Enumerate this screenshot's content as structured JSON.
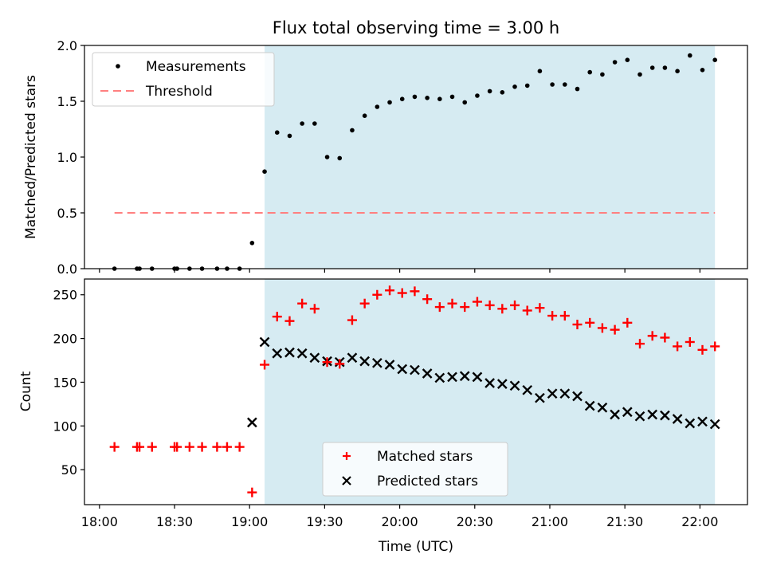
{
  "chart_data": {
    "title": "Flux total observing time = 3.00 h",
    "xlabel": "Time (UTC)",
    "x_ticks": [
      "18:00",
      "18:30",
      "19:00",
      "19:30",
      "20:00",
      "20:30",
      "21:00",
      "21:30",
      "22:00"
    ],
    "x_range_minutes": [
      -6,
      259
    ],
    "shaded_span": {
      "start": "19:06",
      "end": "22:06",
      "color": "#add8e6"
    },
    "panels": [
      {
        "type": "scatter",
        "ylabel": "Matched/Predicted stars",
        "ylim": [
          0,
          2.0
        ],
        "yticks": [
          0.0,
          0.5,
          1.0,
          1.5,
          2.0
        ],
        "legend_placement": "upper-left",
        "series": [
          {
            "name": "Measurements",
            "marker": "dot",
            "color": "#000000",
            "x": [
              "18:06",
              "18:15",
              "18:16",
              "18:21",
              "18:30",
              "18:31",
              "18:36",
              "18:41",
              "18:47",
              "18:51",
              "18:56",
              "19:01",
              "19:06",
              "19:11",
              "19:16",
              "19:21",
              "19:26",
              "19:31",
              "19:36",
              "19:41",
              "19:46",
              "19:51",
              "19:56",
              "20:01",
              "20:06",
              "20:11",
              "20:16",
              "20:21",
              "20:26",
              "20:31",
              "20:36",
              "20:41",
              "20:46",
              "20:51",
              "20:56",
              "21:01",
              "21:06",
              "21:11",
              "21:16",
              "21:21",
              "21:26",
              "21:31",
              "21:36",
              "21:41",
              "21:46",
              "21:51",
              "21:56",
              "22:01",
              "22:06"
            ],
            "y": [
              0.0,
              0.0,
              0.0,
              0.0,
              0.0,
              0.0,
              0.0,
              0.0,
              0.0,
              0.0,
              0.0,
              0.23,
              0.87,
              1.22,
              1.19,
              1.3,
              1.3,
              1.0,
              0.99,
              1.24,
              1.37,
              1.45,
              1.49,
              1.52,
              1.54,
              1.53,
              1.52,
              1.54,
              1.49,
              1.55,
              1.59,
              1.58,
              1.63,
              1.64,
              1.77,
              1.65,
              1.65,
              1.61,
              1.76,
              1.74,
              1.85,
              1.87,
              1.74,
              1.8,
              1.8,
              1.77,
              1.91,
              1.78,
              1.87
            ]
          },
          {
            "name": "Threshold",
            "style": "dashed-line",
            "color": "#ff8080",
            "x": [
              "18:06",
              "22:06"
            ],
            "y": [
              0.5,
              0.5
            ]
          }
        ]
      },
      {
        "type": "scatter",
        "ylabel": "Count",
        "ylim": [
          10,
          268
        ],
        "yticks": [
          50,
          100,
          150,
          200,
          250
        ],
        "legend_placement": "lower-center",
        "series": [
          {
            "name": "Matched stars",
            "marker": "plus",
            "color": "#ff0000",
            "x": [
              "18:06",
              "18:15",
              "18:16",
              "18:21",
              "18:30",
              "18:31",
              "18:36",
              "18:41",
              "18:47",
              "18:51",
              "18:56",
              "19:01",
              "19:06",
              "19:11",
              "19:16",
              "19:21",
              "19:26",
              "19:31",
              "19:36",
              "19:41",
              "19:46",
              "19:51",
              "19:56",
              "20:01",
              "20:06",
              "20:11",
              "20:16",
              "20:21",
              "20:26",
              "20:31",
              "20:36",
              "20:41",
              "20:46",
              "20:51",
              "20:56",
              "21:01",
              "21:06",
              "21:11",
              "21:16",
              "21:21",
              "21:26",
              "21:31",
              "21:36",
              "21:41",
              "21:46",
              "21:51",
              "21:56",
              "22:01",
              "22:06"
            ],
            "y": [
              76,
              76,
              76,
              76,
              76,
              76,
              76,
              76,
              76,
              76,
              76,
              24,
              170,
              225,
              220,
              240,
              234,
              173,
              171,
              221,
              240,
              250,
              255,
              252,
              254,
              245,
              236,
              240,
              236,
              242,
              238,
              234,
              238,
              232,
              235,
              226,
              226,
              216,
              218,
              212,
              210,
              218,
              194,
              203,
              201,
              191,
              196,
              187,
              191
            ]
          },
          {
            "name": "Predicted stars",
            "marker": "x",
            "color": "#000000",
            "x": [
              "19:01",
              "19:06",
              "19:11",
              "19:16",
              "19:21",
              "19:26",
              "19:31",
              "19:36",
              "19:41",
              "19:46",
              "19:51",
              "19:56",
              "20:01",
              "20:06",
              "20:11",
              "20:16",
              "20:21",
              "20:26",
              "20:31",
              "20:36",
              "20:41",
              "20:46",
              "20:51",
              "20:56",
              "21:01",
              "21:06",
              "21:11",
              "21:16",
              "21:21",
              "21:26",
              "21:31",
              "21:36",
              "21:41",
              "21:46",
              "21:51",
              "21:56",
              "22:01",
              "22:06"
            ],
            "y": [
              104,
              196,
              183,
              184,
              183,
              178,
              174,
              173,
              178,
              174,
              172,
              170,
              165,
              164,
              160,
              155,
              156,
              157,
              156,
              149,
              148,
              146,
              141,
              132,
              137,
              137,
              134,
              123,
              121,
              113,
              116,
              111,
              113,
              112,
              108,
              103,
              105,
              102
            ]
          }
        ]
      }
    ]
  }
}
